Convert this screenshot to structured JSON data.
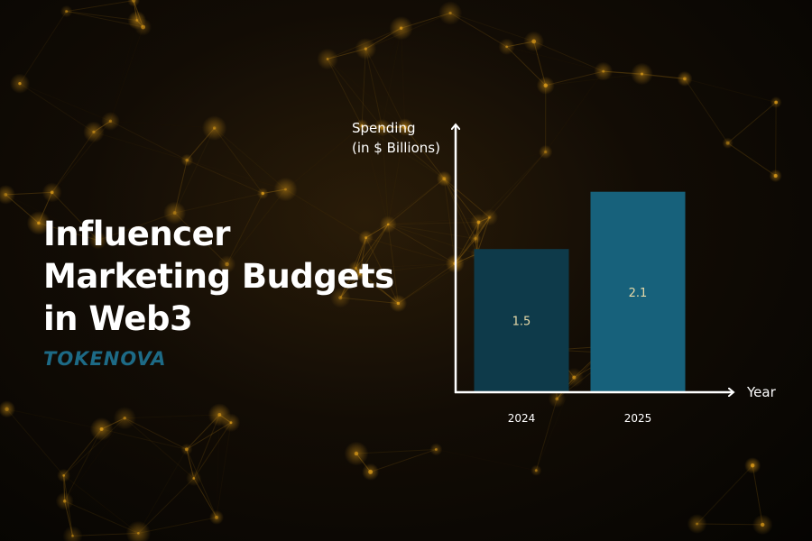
{
  "title_lines": [
    "Influencer",
    "Marketing Budgets",
    "in Web3"
  ],
  "brand": "TOKENOVA",
  "colors": {
    "bar_2024": "#0e3a4a",
    "bar_2025": "#17617b",
    "brand": "#1d6a86",
    "bar_label": "#e6d9a8",
    "axis": "#ffffff",
    "network_glow": "#e6a21a"
  },
  "chart_data": {
    "type": "bar",
    "categories": [
      "2024",
      "2025"
    ],
    "values": [
      1.5,
      2.1
    ],
    "data_labels": [
      "1.5",
      "2.1"
    ],
    "ylabel_lines": [
      "Spending",
      "(in $ Billions)"
    ],
    "xlabel": "Year",
    "ylim": [
      0,
      2.9
    ],
    "grid": false,
    "legend": "none"
  }
}
